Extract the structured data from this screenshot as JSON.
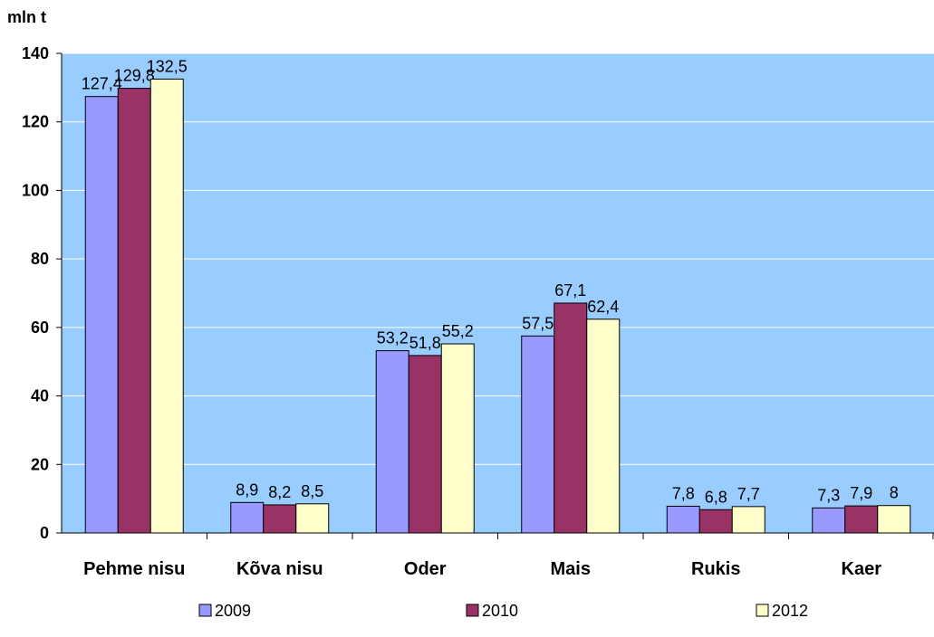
{
  "chart_data": {
    "type": "bar",
    "ylabel": "mln t",
    "ylim": [
      0,
      140
    ],
    "yticks": [
      0,
      20,
      40,
      60,
      80,
      100,
      120,
      140
    ],
    "grid": true,
    "legend_position": "bottom",
    "categories": [
      "Pehme nisu",
      "Kõva nisu",
      "Oder",
      "Mais",
      "Rukis",
      "Kaer"
    ],
    "series": [
      {
        "name": "2009",
        "color": "#9999ff",
        "values": [
          127.4,
          8.9,
          53.2,
          57.5,
          7.8,
          7.3
        ],
        "labels": [
          "127,4",
          "8,9",
          "53,2",
          "57,5",
          "7,8",
          "7,3"
        ]
      },
      {
        "name": "2010",
        "color": "#993366",
        "values": [
          129.8,
          8.2,
          51.8,
          67.1,
          6.8,
          7.9
        ],
        "labels": [
          "129,8",
          "8,2",
          "51,8",
          "67,1",
          "6,8",
          "7,9"
        ]
      },
      {
        "name": "2012",
        "color": "#ffffcc",
        "values": [
          132.5,
          8.5,
          55.2,
          62.4,
          7.7,
          8
        ],
        "labels": [
          "132,5",
          "8,5",
          "55,2",
          "62,4",
          "7,7",
          "8"
        ]
      }
    ],
    "plot_background": "#99ccff"
  }
}
